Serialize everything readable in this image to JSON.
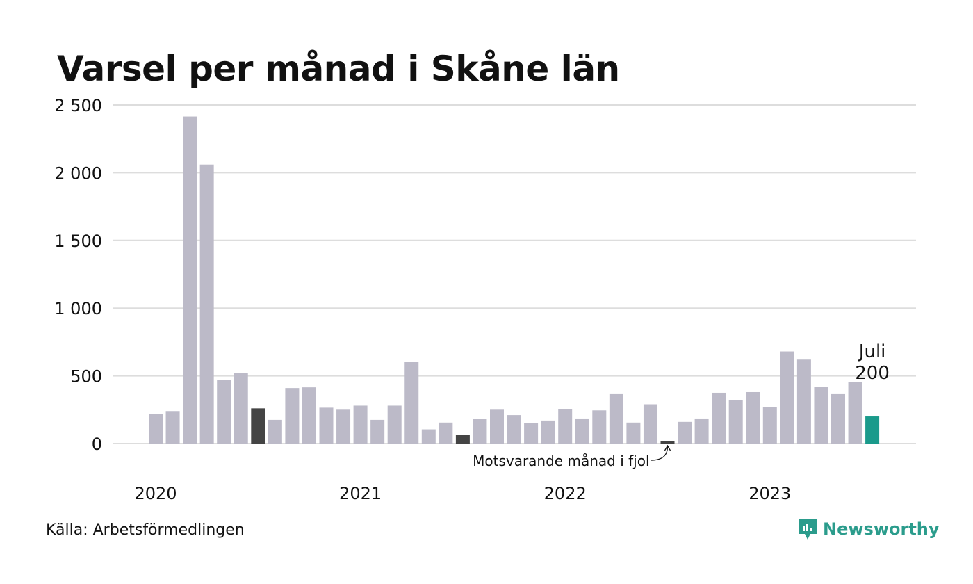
{
  "title": "Varsel per månad i Skåne län",
  "source": "Källa: Arbetsförmedlingen",
  "brand": "Newsworthy",
  "annotation_prev_year": "Motsvarande månad i fjol",
  "highlight": {
    "label": "Juli",
    "value": "200"
  },
  "colors": {
    "bar": "#bcbac8",
    "prev_year": "#444444",
    "current": "#1a9a8b",
    "brand": "#2b9c8c",
    "grid": "#dddddd"
  },
  "chart_data": {
    "type": "bar",
    "title": "Varsel per månad i Skåne län",
    "xlabel": "",
    "ylabel": "",
    "ylim": [
      0,
      2500
    ],
    "yticks": [
      0,
      500,
      1000,
      1500,
      2000,
      2500
    ],
    "ytick_labels": [
      "0",
      "500",
      "1 000",
      "1 500",
      "2 000",
      "2 500"
    ],
    "year_labels": [
      "2020",
      "2021",
      "2022",
      "2023"
    ],
    "categories": [
      "2020-01",
      "2020-02",
      "2020-03",
      "2020-04",
      "2020-05",
      "2020-06",
      "2020-07",
      "2020-08",
      "2020-09",
      "2020-10",
      "2020-11",
      "2020-12",
      "2021-01",
      "2021-02",
      "2021-03",
      "2021-04",
      "2021-05",
      "2021-06",
      "2021-07",
      "2021-08",
      "2021-09",
      "2021-10",
      "2021-11",
      "2021-12",
      "2022-01",
      "2022-02",
      "2022-03",
      "2022-04",
      "2022-05",
      "2022-06",
      "2022-07",
      "2022-08",
      "2022-09",
      "2022-10",
      "2022-11",
      "2022-12",
      "2023-01",
      "2023-02",
      "2023-03",
      "2023-04",
      "2023-05",
      "2023-06",
      "2023-07"
    ],
    "values": [
      220,
      240,
      2415,
      2060,
      470,
      520,
      260,
      175,
      410,
      415,
      265,
      250,
      280,
      175,
      280,
      605,
      105,
      155,
      65,
      180,
      250,
      210,
      150,
      170,
      255,
      185,
      245,
      370,
      155,
      290,
      20,
      160,
      185,
      375,
      320,
      380,
      270,
      680,
      620,
      420,
      370,
      455,
      200
    ],
    "highlight_prev_year_months": [
      "2020-07",
      "2021-07",
      "2022-07"
    ],
    "highlight_current_month": "2023-07"
  }
}
